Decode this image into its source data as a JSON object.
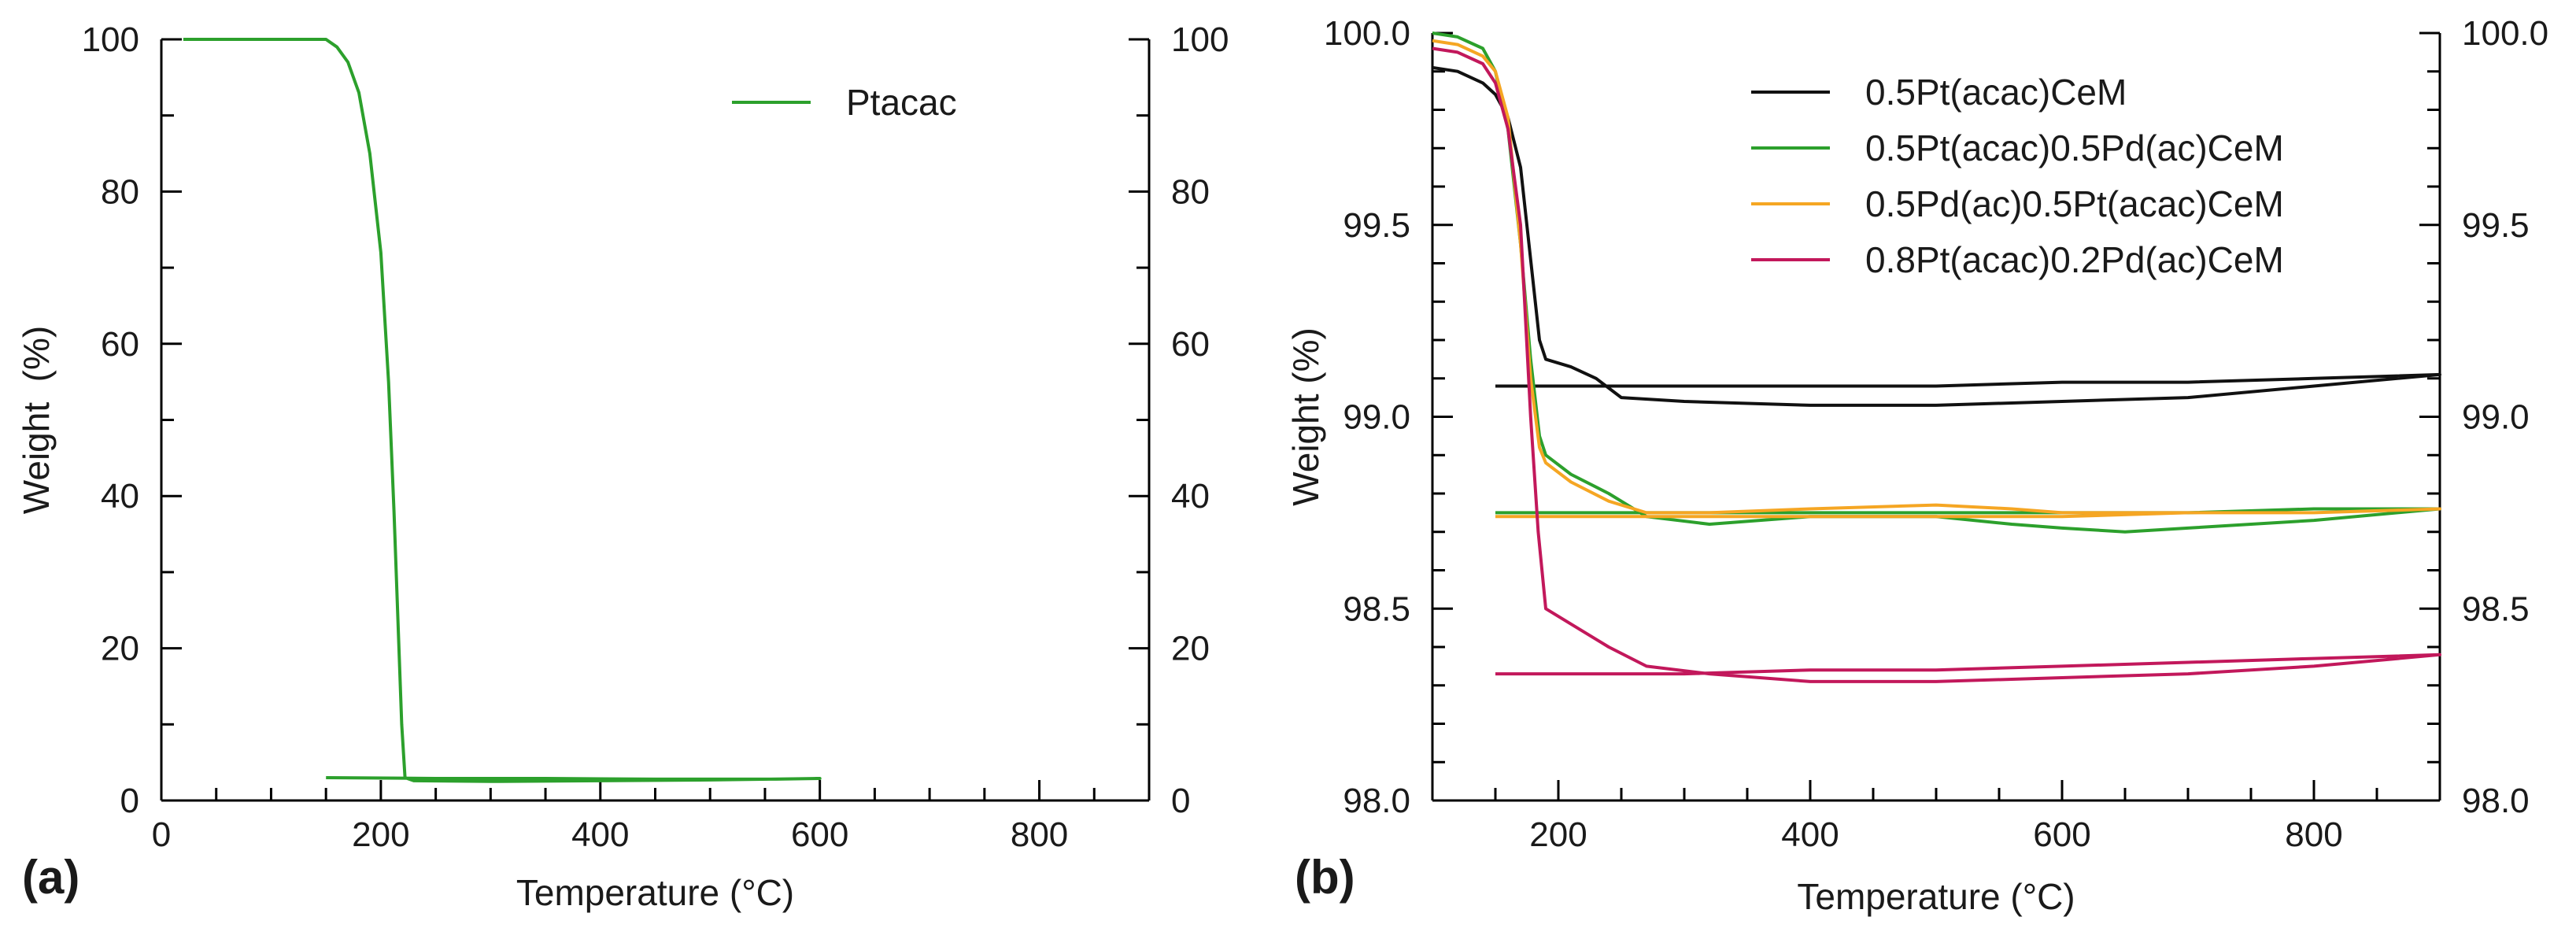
{
  "chart_data": [
    {
      "type": "line",
      "panel_label": "(a)",
      "xlabel": "Temperature (°C)",
      "ylabel": "Weight  (%)",
      "xlim": [
        0,
        900
      ],
      "ylim": [
        0,
        100
      ],
      "x_ticks": [
        0,
        200,
        400,
        600,
        800
      ],
      "x_minor_step": 50,
      "y_ticks": [
        0,
        20,
        40,
        60,
        80,
        100
      ],
      "y_minor_step": 10,
      "y_tick_decimals": 0,
      "right_axis_labels": true,
      "grid": false,
      "legend_position": "top-right",
      "series": [
        {
          "name": "Ptacac",
          "color": "#2ca02c",
          "points": [
            [
              20,
              100
            ],
            [
              150,
              100
            ],
            [
              160,
              99
            ],
            [
              170,
              97
            ],
            [
              180,
              93
            ],
            [
              190,
              85
            ],
            [
              200,
              72
            ],
            [
              207,
              55
            ],
            [
              212,
              38
            ],
            [
              216,
              22
            ],
            [
              219,
              10
            ],
            [
              222,
              3
            ],
            [
              230,
              2.6
            ],
            [
              300,
              2.5
            ],
            [
              400,
              2.6
            ],
            [
              500,
              2.7
            ],
            [
              600,
              2.9
            ],
            [
              560,
              2.8
            ],
            [
              450,
              2.8
            ],
            [
              350,
              2.9
            ],
            [
              250,
              2.9
            ],
            [
              150,
              3
            ]
          ]
        }
      ]
    },
    {
      "type": "line",
      "panel_label": "(b)",
      "xlabel": "Temperature (°C)",
      "ylabel": "Weight (%)",
      "xlim": [
        100,
        900
      ],
      "ylim": [
        98.0,
        100.0
      ],
      "x_ticks": [
        200,
        400,
        600,
        800
      ],
      "x_minor_step": 50,
      "y_ticks": [
        98.0,
        98.5,
        99.0,
        99.5,
        100.0
      ],
      "y_minor_step": 0.1,
      "y_tick_decimals": 1,
      "right_axis_labels": true,
      "grid": false,
      "legend_position": "top-right",
      "series": [
        {
          "name": "0.5Pt(acac)CeM",
          "color": "#111111",
          "points": [
            [
              100,
              99.91
            ],
            [
              120,
              99.9
            ],
            [
              140,
              99.87
            ],
            [
              150,
              99.84
            ],
            [
              160,
              99.78
            ],
            [
              170,
              99.65
            ],
            [
              175,
              99.5
            ],
            [
              180,
              99.35
            ],
            [
              185,
              99.2
            ],
            [
              190,
              99.15
            ],
            [
              210,
              99.13
            ],
            [
              230,
              99.1
            ],
            [
              250,
              99.05
            ],
            [
              300,
              99.04
            ],
            [
              400,
              99.03
            ],
            [
              500,
              99.03
            ],
            [
              600,
              99.04
            ],
            [
              700,
              99.05
            ],
            [
              800,
              99.08
            ],
            [
              900,
              99.11
            ],
            [
              800,
              99.1
            ],
            [
              700,
              99.09
            ],
            [
              600,
              99.09
            ],
            [
              500,
              99.08
            ],
            [
              400,
              99.08
            ],
            [
              300,
              99.08
            ],
            [
              200,
              99.08
            ],
            [
              150,
              99.08
            ]
          ]
        },
        {
          "name": "0.5Pt(acac)0.5Pd(ac)CeM",
          "color": "#2ca02c",
          "points": [
            [
              100,
              100.0
            ],
            [
              120,
              99.99
            ],
            [
              140,
              99.96
            ],
            [
              150,
              99.9
            ],
            [
              160,
              99.75
            ],
            [
              170,
              99.45
            ],
            [
              178,
              99.15
            ],
            [
              185,
              98.95
            ],
            [
              190,
              98.9
            ],
            [
              210,
              98.85
            ],
            [
              240,
              98.8
            ],
            [
              270,
              98.74
            ],
            [
              320,
              98.72
            ],
            [
              400,
              98.74
            ],
            [
              500,
              98.74
            ],
            [
              560,
              98.72
            ],
            [
              600,
              98.71
            ],
            [
              650,
              98.7
            ],
            [
              700,
              98.71
            ],
            [
              800,
              98.73
            ],
            [
              900,
              98.76
            ],
            [
              800,
              98.76
            ],
            [
              700,
              98.75
            ],
            [
              600,
              98.75
            ],
            [
              500,
              98.75
            ],
            [
              400,
              98.75
            ],
            [
              300,
              98.75
            ],
            [
              200,
              98.75
            ],
            [
              150,
              98.75
            ]
          ]
        },
        {
          "name": "0.5Pd(ac)0.5Pt(acac)CeM",
          "color": "#f5a623",
          "points": [
            [
              100,
              99.98
            ],
            [
              120,
              99.97
            ],
            [
              140,
              99.94
            ],
            [
              150,
              99.9
            ],
            [
              160,
              99.78
            ],
            [
              170,
              99.45
            ],
            [
              178,
              99.1
            ],
            [
              185,
              98.92
            ],
            [
              190,
              98.88
            ],
            [
              210,
              98.83
            ],
            [
              240,
              98.78
            ],
            [
              270,
              98.75
            ],
            [
              320,
              98.75
            ],
            [
              400,
              98.76
            ],
            [
              500,
              98.77
            ],
            [
              560,
              98.76
            ],
            [
              600,
              98.75
            ],
            [
              700,
              98.75
            ],
            [
              800,
              98.75
            ],
            [
              900,
              98.76
            ],
            [
              800,
              98.75
            ],
            [
              700,
              98.75
            ],
            [
              600,
              98.74
            ],
            [
              500,
              98.74
            ],
            [
              400,
              98.74
            ],
            [
              300,
              98.74
            ],
            [
              200,
              98.74
            ],
            [
              150,
              98.74
            ]
          ]
        },
        {
          "name": "0.8Pt(acac)0.2Pd(ac)CeM",
          "color": "#c2185b",
          "points": [
            [
              100,
              99.96
            ],
            [
              120,
              99.95
            ],
            [
              140,
              99.92
            ],
            [
              150,
              99.87
            ],
            [
              160,
              99.75
            ],
            [
              170,
              99.5
            ],
            [
              178,
              99.0
            ],
            [
              184,
              98.7
            ],
            [
              190,
              98.5
            ],
            [
              210,
              98.46
            ],
            [
              240,
              98.4
            ],
            [
              270,
              98.35
            ],
            [
              320,
              98.33
            ],
            [
              400,
              98.31
            ],
            [
              500,
              98.31
            ],
            [
              600,
              98.32
            ],
            [
              700,
              98.33
            ],
            [
              800,
              98.35
            ],
            [
              900,
              98.38
            ],
            [
              800,
              98.37
            ],
            [
              700,
              98.36
            ],
            [
              600,
              98.35
            ],
            [
              500,
              98.34
            ],
            [
              400,
              98.34
            ],
            [
              300,
              98.33
            ],
            [
              200,
              98.33
            ],
            [
              150,
              98.33
            ]
          ]
        }
      ]
    }
  ]
}
